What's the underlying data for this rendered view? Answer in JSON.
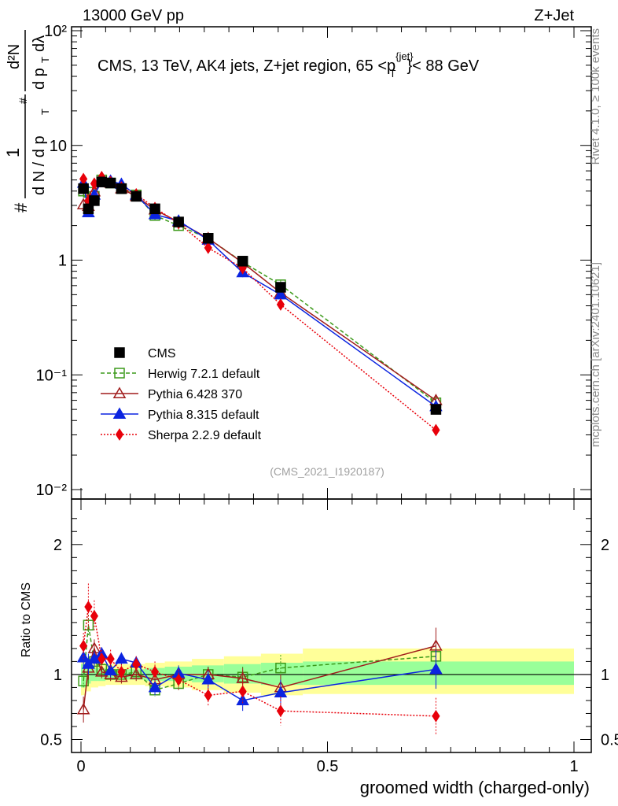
{
  "header": {
    "left": "13000 GeV pp",
    "right": "Z+Jet"
  },
  "side": {
    "rivet": "Rivet 4.1.0, ≥ 100k events",
    "mcplots": "mcplots.cern.ch [arXiv:2401.10621]"
  },
  "analysis_id": "(CMS_2021_I1920187)",
  "chart_data": {
    "type": "scatter",
    "title": "CMS, 13 TeV, AK4 jets, Z+jet region, 65 <p_T^{jet}> < 88 GeV",
    "title_parts": {
      "main": "CMS, 13 TeV, AK4 jets, Z+jet region, 65 <p",
      "sup": "{jet}",
      "sub": "T",
      "tail": "}< 88 GeV"
    },
    "xlabel": "groomed width (charged-only)",
    "ylabel": "1/(dN/dp_T) d²N/(dp_T dλ)",
    "ylabel_parts": {
      "hash": "#",
      "one": "1",
      "dN": "d N / d p",
      "T": "T",
      "d2N": "d²N",
      "dpT": "d p",
      "dlambda": "dλ"
    },
    "ratio_ylabel": "Ratio to CMS",
    "xlim": [
      0,
      1
    ],
    "ylim_main": [
      0.01,
      100
    ],
    "ylim_ratio": [
      0.4,
      2.35
    ],
    "main_y_scale": "log",
    "x_ticks": [
      "0",
      "0.5",
      "1"
    ],
    "main_y_ticks": [
      "10⁻²",
      "10⁻¹",
      "1",
      "10",
      "10²"
    ],
    "ratio_y_ticks": [
      "0.5",
      "1",
      "2"
    ],
    "x": [
      0.005,
      0.015,
      0.027,
      0.042,
      0.06,
      0.082,
      0.112,
      0.15,
      0.198,
      0.258,
      0.328,
      0.405,
      0.72
    ],
    "data_values": [
      4.2,
      2.8,
      3.3,
      4.8,
      4.7,
      4.2,
      3.6,
      2.8,
      2.15,
      1.55,
      0.98,
      0.58,
      0.05
    ],
    "band_edges": [
      0,
      0.01,
      0.02,
      0.035,
      0.05,
      0.07,
      0.095,
      0.13,
      0.17,
      0.225,
      0.29,
      0.365,
      0.45,
      1.0
    ],
    "band_inner": [
      [
        0.9,
        1.08
      ],
      [
        0.93,
        1.06
      ],
      [
        0.95,
        1.05
      ],
      [
        0.95,
        1.05
      ],
      [
        0.96,
        1.04
      ],
      [
        0.96,
        1.04
      ],
      [
        0.96,
        1.04
      ],
      [
        0.95,
        1.05
      ],
      [
        0.95,
        1.06
      ],
      [
        0.94,
        1.07
      ],
      [
        0.93,
        1.08
      ],
      [
        0.92,
        1.09
      ],
      [
        0.92,
        1.1
      ]
    ],
    "band_outer": [
      [
        0.84,
        1.14
      ],
      [
        0.87,
        1.12
      ],
      [
        0.9,
        1.1
      ],
      [
        0.91,
        1.09
      ],
      [
        0.92,
        1.08
      ],
      [
        0.92,
        1.08
      ],
      [
        0.92,
        1.08
      ],
      [
        0.91,
        1.09
      ],
      [
        0.9,
        1.1
      ],
      [
        0.88,
        1.12
      ],
      [
        0.86,
        1.14
      ],
      [
        0.84,
        1.16
      ],
      [
        0.85,
        1.2
      ]
    ],
    "series": [
      {
        "name": "CMS",
        "color": "#000000",
        "marker": "filled-square",
        "line": "none",
        "values": [
          4.2,
          2.8,
          3.3,
          4.8,
          4.7,
          4.2,
          3.6,
          2.8,
          2.15,
          1.55,
          0.98,
          0.58,
          0.05
        ],
        "ratio": [
          1,
          1,
          1,
          1,
          1,
          1,
          1,
          1,
          1,
          1,
          1,
          1,
          1
        ],
        "ratio_err": [
          0,
          0,
          0,
          0,
          0,
          0,
          0,
          0,
          0,
          0,
          0,
          0,
          0
        ]
      },
      {
        "name": "Herwig 7.2.1 default",
        "color": "#3c9a1a",
        "marker": "open-square",
        "line": "dashed",
        "values": [
          4.0,
          3.9,
          3.6,
          5.0,
          4.7,
          4.2,
          3.7,
          2.45,
          2.0,
          1.55,
          0.96,
          0.61,
          0.057
        ],
        "ratio": [
          0.95,
          1.38,
          1.1,
          1.04,
          1.0,
          1.0,
          1.02,
          0.88,
          0.93,
          1.0,
          0.98,
          1.05,
          1.14
        ],
        "ratio_err": [
          0.06,
          0.08,
          0.06,
          0.05,
          0.05,
          0.05,
          0.05,
          0.05,
          0.05,
          0.06,
          0.08,
          0.1,
          0.12
        ]
      },
      {
        "name": "Pythia 6.428 370",
        "color": "#a01c1c",
        "marker": "open-triangle",
        "line": "solid",
        "values": [
          3.05,
          2.95,
          3.95,
          4.9,
          4.7,
          4.2,
          3.6,
          2.75,
          2.15,
          1.55,
          0.95,
          0.52,
          0.06
        ],
        "ratio": [
          0.73,
          1.05,
          1.2,
          1.02,
          1.0,
          0.98,
          1.0,
          0.96,
          1.0,
          1.0,
          0.97,
          0.9,
          1.22
        ],
        "ratio_err": [
          0.1,
          0.09,
          0.07,
          0.05,
          0.05,
          0.05,
          0.05,
          0.05,
          0.05,
          0.06,
          0.08,
          0.1,
          0.14
        ]
      },
      {
        "name": "Pythia 8.315 default",
        "color": "#0b24e0",
        "marker": "filled-triangle",
        "line": "solid",
        "values": [
          4.7,
          2.6,
          3.7,
          4.85,
          4.9,
          4.6,
          3.7,
          2.5,
          2.2,
          1.5,
          0.78,
          0.5,
          0.053
        ],
        "ratio": [
          1.13,
          1.08,
          1.12,
          1.16,
          1.03,
          1.12,
          1.09,
          0.9,
          1.01,
          0.96,
          0.8,
          0.86,
          1.04
        ],
        "ratio_err": [
          0.07,
          0.08,
          0.06,
          0.05,
          0.05,
          0.05,
          0.05,
          0.06,
          0.06,
          0.07,
          0.08,
          0.1,
          0.15
        ]
      },
      {
        "name": "Sherpa 2.2.9 default",
        "color": "#e8000a",
        "marker": "filled-diamond",
        "line": "dotted",
        "values": [
          5.1,
          3.3,
          4.65,
          5.3,
          4.8,
          4.3,
          3.75,
          2.85,
          2.1,
          1.28,
          0.85,
          0.41,
          0.033
        ],
        "ratio": [
          1.22,
          1.52,
          1.45,
          1.12,
          1.12,
          1.02,
          1.08,
          1.02,
          0.96,
          0.84,
          0.87,
          0.72,
          0.68
        ],
        "ratio_err": [
          0.1,
          0.18,
          0.12,
          0.07,
          0.07,
          0.06,
          0.06,
          0.08,
          0.08,
          0.08,
          0.09,
          0.11,
          0.14
        ]
      }
    ]
  }
}
